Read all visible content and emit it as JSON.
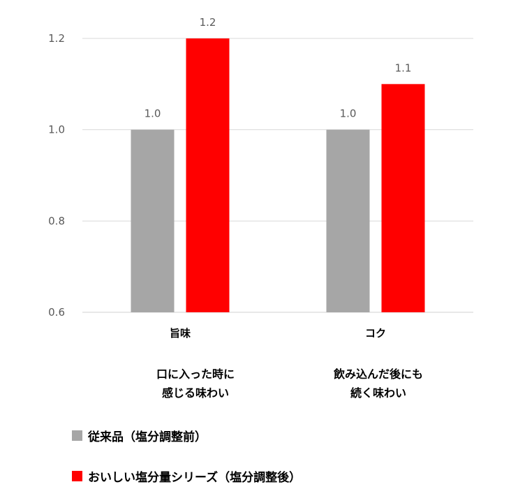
{
  "chart_data": {
    "type": "bar",
    "categories": [
      "旨味",
      "コク"
    ],
    "category_descriptions": [
      [
        "口に入った時に",
        "感じる味わい"
      ],
      [
        "飲み込んだ後にも",
        "続く味わい"
      ]
    ],
    "series": [
      {
        "name": "従来品（塩分調整前）",
        "values": [
          1.0,
          1.0
        ],
        "labels": [
          "1.0",
          "1.0"
        ],
        "color": "#a6a6a6"
      },
      {
        "name": "おいしい塩分量シリーズ（塩分調整後）",
        "values": [
          1.2,
          1.1
        ],
        "labels": [
          "1.2",
          "1.1"
        ],
        "color": "#ff0000"
      }
    ],
    "yticks": [
      "0.6",
      "0.8",
      "1.0",
      "1.2"
    ],
    "ylim": [
      0.6,
      1.2
    ],
    "grid": true,
    "legend_position": "bottom"
  }
}
